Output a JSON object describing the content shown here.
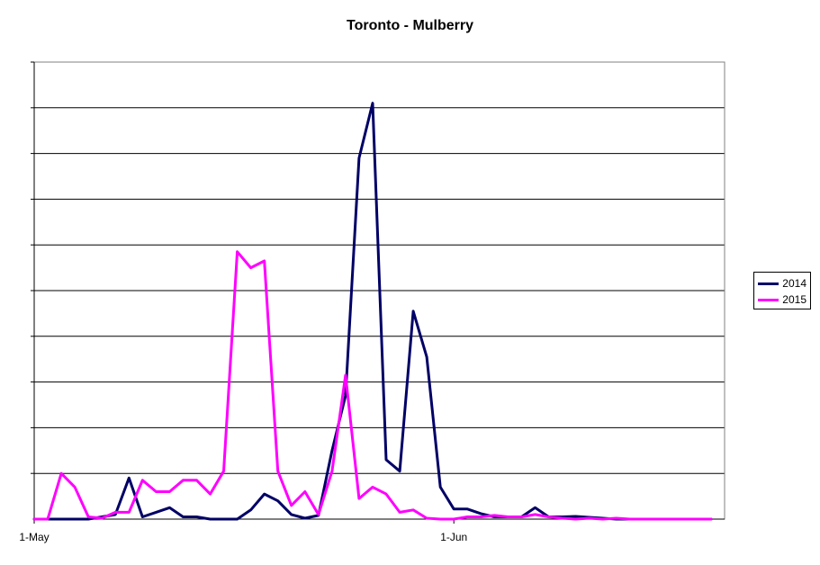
{
  "chart_data": {
    "type": "line",
    "title": "Toronto - Mulberry",
    "xlabel": "",
    "ylabel": "",
    "x_tick_labels": [
      {
        "day": 0,
        "label": "1-May"
      },
      {
        "day": 31,
        "label": "1-Jun"
      }
    ],
    "x_range": [
      0,
      51
    ],
    "y_range": [
      0,
      10
    ],
    "y_ticks_labeled": false,
    "grid": "horizontal",
    "legend_position": "right",
    "series": [
      {
        "name": "2014",
        "color": "#000066",
        "x": [
          0,
          1,
          2,
          3,
          4,
          5,
          6,
          7,
          8,
          9,
          10,
          11,
          12,
          13,
          14,
          15,
          16,
          17,
          18,
          19,
          20,
          21,
          22,
          23,
          24,
          25,
          26,
          27,
          28,
          29,
          30,
          31,
          32,
          33,
          34,
          35,
          36,
          37,
          38,
          39,
          40,
          41,
          42,
          43,
          44,
          45,
          46,
          47,
          48,
          49,
          50
        ],
        "values": [
          0,
          0,
          0,
          0,
          0,
          0.05,
          0.1,
          0.9,
          0.05,
          0.15,
          0.25,
          0.05,
          0.05,
          0,
          0,
          0,
          0.2,
          0.55,
          0.4,
          0.1,
          0.02,
          0.08,
          1.5,
          2.7,
          7.9,
          9.1,
          1.3,
          1.05,
          4.55,
          3.55,
          0.7,
          0.22,
          0.22,
          0.12,
          0.05,
          0.05,
          0.05,
          0.25,
          0.05,
          0.05,
          0.06,
          0.04,
          0.02,
          0,
          0,
          0,
          0,
          0,
          0,
          0,
          0
        ]
      },
      {
        "name": "2015",
        "color": "#ff00ff",
        "x": [
          0,
          1,
          2,
          3,
          4,
          5,
          6,
          7,
          8,
          9,
          10,
          11,
          12,
          13,
          14,
          15,
          16,
          17,
          18,
          19,
          20,
          21,
          22,
          23,
          24,
          25,
          26,
          27,
          28,
          29,
          30,
          31,
          32,
          33,
          34,
          35,
          36,
          37,
          38,
          39,
          40,
          41,
          42,
          43,
          44,
          45,
          46,
          47,
          48,
          49,
          50
        ],
        "values": [
          0,
          0,
          1.0,
          0.7,
          0.05,
          0.02,
          0.15,
          0.15,
          0.85,
          0.6,
          0.6,
          0.85,
          0.85,
          0.55,
          1.05,
          5.85,
          5.5,
          5.65,
          1.05,
          0.3,
          0.6,
          0.1,
          1.05,
          3.15,
          0.45,
          0.7,
          0.55,
          0.15,
          0.2,
          0.02,
          0,
          0,
          0.05,
          0.05,
          0.08,
          0.05,
          0.05,
          0.1,
          0.05,
          0.02,
          0,
          0.02,
          0,
          0.02,
          0,
          0,
          0,
          0,
          0,
          0,
          0
        ]
      }
    ]
  }
}
